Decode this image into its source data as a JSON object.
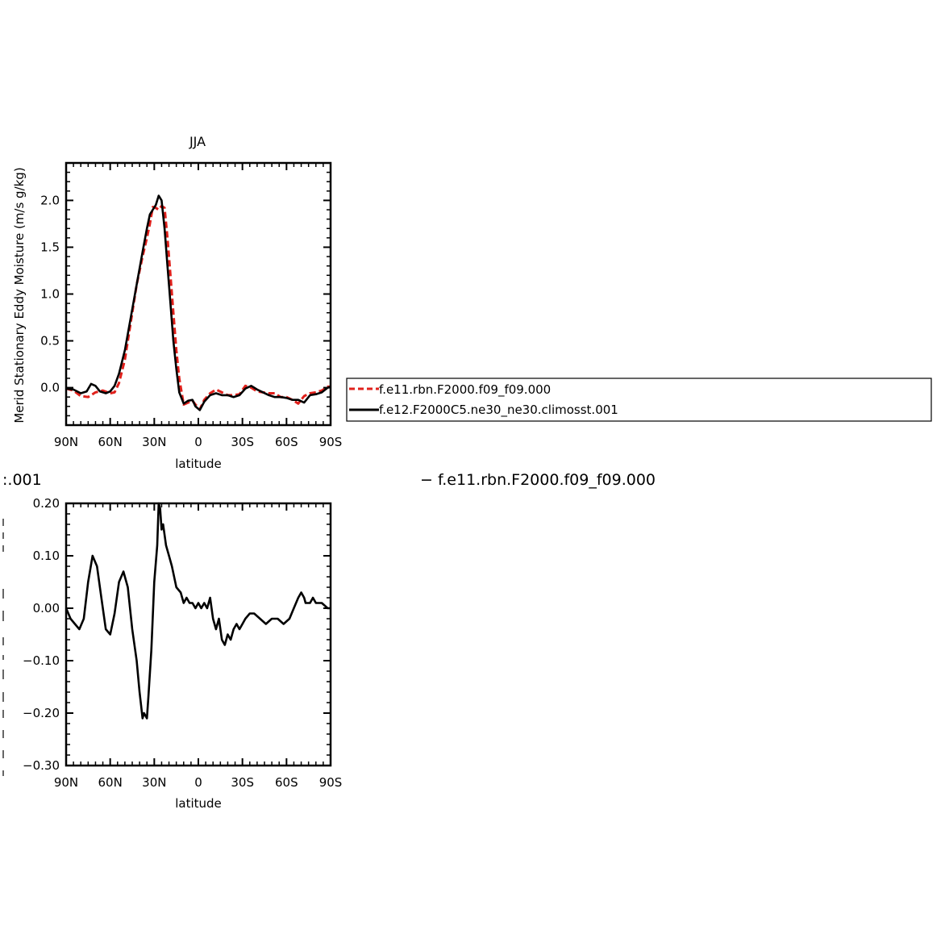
{
  "chart_data": [
    {
      "type": "line",
      "title": "JJA",
      "xlabel": "latitude",
      "ylabel": "Merid Stationary Eddy Moisture (m/s g/kg)",
      "xlim": [
        90,
        -90
      ],
      "ylim": [
        -0.4,
        2.4
      ],
      "xticks": [
        {
          "value": 90,
          "label": "90N"
        },
        {
          "value": 60,
          "label": "60N"
        },
        {
          "value": 30,
          "label": "30N"
        },
        {
          "value": 0,
          "label": "0"
        },
        {
          "value": -30,
          "label": "30S"
        },
        {
          "value": -60,
          "label": "60S"
        },
        {
          "value": -90,
          "label": "90S"
        }
      ],
      "yticks": [
        {
          "value": 0.0,
          "label": "0.0"
        },
        {
          "value": 0.5,
          "label": "0.5"
        },
        {
          "value": 1.0,
          "label": "1.0"
        },
        {
          "value": 1.5,
          "label": "1.5"
        },
        {
          "value": 2.0,
          "label": "2.0"
        }
      ],
      "legend": "right",
      "series": [
        {
          "name": "f.e11.rbn.F2000.f09_f09.000",
          "color": "#e0201b",
          "dash": true,
          "x": [
            90,
            85,
            80,
            75,
            70,
            65,
            60,
            57,
            54,
            50,
            46,
            42,
            38,
            35,
            33,
            31,
            29,
            27,
            25,
            23,
            21,
            19,
            17,
            15,
            13,
            10,
            7,
            4,
            2,
            -1,
            -4,
            -8,
            -12,
            -16,
            -20,
            -24,
            -28,
            -32,
            -36,
            -40,
            -44,
            -48,
            -52,
            -56,
            -60,
            -64,
            -68,
            -72,
            -76,
            -80,
            -84,
            -88,
            -90
          ],
          "y": [
            -0.01,
            -0.03,
            -0.09,
            -0.1,
            -0.05,
            -0.03,
            -0.06,
            -0.05,
            0.05,
            0.3,
            0.7,
            1.1,
            1.4,
            1.6,
            1.75,
            1.93,
            1.92,
            1.9,
            1.94,
            1.92,
            1.6,
            1.2,
            0.8,
            0.4,
            0.1,
            -0.18,
            -0.16,
            -0.14,
            -0.18,
            -0.23,
            -0.13,
            -0.06,
            -0.02,
            -0.05,
            -0.08,
            -0.08,
            -0.07,
            0.02,
            0.0,
            -0.04,
            -0.05,
            -0.06,
            -0.06,
            -0.1,
            -0.1,
            -0.13,
            -0.17,
            -0.09,
            -0.06,
            -0.05,
            -0.03,
            0.01,
            0.01
          ]
        },
        {
          "name": "f.e12.F2000C5.ne30_ne30.climosst.001",
          "color": "#000000",
          "dash": false,
          "x": [
            90,
            85,
            80,
            76,
            73,
            70,
            67,
            63,
            60,
            57,
            54,
            50,
            46,
            42,
            38,
            35,
            33,
            31,
            29,
            27,
            25,
            23,
            21,
            19,
            17,
            15,
            13,
            10,
            7,
            4,
            2,
            -1,
            -4,
            -8,
            -12,
            -16,
            -20,
            -24,
            -28,
            -32,
            -36,
            -40,
            -44,
            -48,
            -52,
            -56,
            -60,
            -64,
            -68,
            -72,
            -76,
            -80,
            -84,
            -88,
            -90
          ],
          "y": [
            -0.01,
            -0.02,
            -0.06,
            -0.04,
            0.04,
            0.02,
            -0.04,
            -0.06,
            -0.04,
            0.02,
            0.15,
            0.4,
            0.75,
            1.1,
            1.45,
            1.7,
            1.85,
            1.9,
            1.95,
            2.05,
            2.0,
            1.7,
            1.3,
            0.9,
            0.5,
            0.2,
            -0.05,
            -0.17,
            -0.14,
            -0.13,
            -0.2,
            -0.24,
            -0.15,
            -0.08,
            -0.06,
            -0.08,
            -0.08,
            -0.1,
            -0.08,
            -0.01,
            0.02,
            -0.02,
            -0.05,
            -0.08,
            -0.1,
            -0.1,
            -0.11,
            -0.13,
            -0.13,
            -0.16,
            -0.08,
            -0.07,
            -0.05,
            0.0,
            0.01
          ]
        }
      ]
    },
    {
      "type": "line",
      "title": "",
      "title_fragment": ":.001",
      "legend_text": "− f.e11.rbn.F2000.f09_f09.000",
      "xlabel": "latitude",
      "ylabel": "",
      "xlim": [
        90,
        -90
      ],
      "ylim": [
        -0.3,
        0.2
      ],
      "xticks": [
        {
          "value": 90,
          "label": "90N"
        },
        {
          "value": 60,
          "label": "60N"
        },
        {
          "value": 30,
          "label": "30N"
        },
        {
          "value": 0,
          "label": "0"
        },
        {
          "value": -30,
          "label": "30S"
        },
        {
          "value": -60,
          "label": "60S"
        },
        {
          "value": -90,
          "label": "90S"
        }
      ],
      "yticks": [
        {
          "value": 0.2,
          "label": "0.20"
        },
        {
          "value": 0.1,
          "label": "0.10"
        },
        {
          "value": 0.0,
          "label": "0.00"
        },
        {
          "value": -0.1,
          "label": "−0.10"
        },
        {
          "value": -0.2,
          "label": "−0.20"
        },
        {
          "value": -0.3,
          "label": "−0.30"
        }
      ],
      "series": [
        {
          "color": "#000000",
          "x": [
            90,
            87,
            84,
            81,
            78,
            75,
            72,
            69,
            66,
            63,
            60,
            57,
            54,
            51,
            48,
            45,
            42,
            40,
            38,
            37,
            35,
            34,
            32,
            30,
            28,
            27,
            26,
            25,
            24,
            22,
            20,
            18,
            15,
            12,
            10,
            8,
            6,
            4,
            2,
            0,
            -2,
            -4,
            -6,
            -8,
            -10,
            -12,
            -14,
            -16,
            -18,
            -20,
            -22,
            -24,
            -26,
            -28,
            -30,
            -32,
            -35,
            -38,
            -42,
            -46,
            -50,
            -54,
            -58,
            -62,
            -65,
            -68,
            -70,
            -72,
            -73,
            -74,
            -76,
            -78,
            -80,
            -84,
            -88,
            -90
          ],
          "y": [
            0.0,
            -0.02,
            -0.03,
            -0.04,
            -0.02,
            0.05,
            0.1,
            0.08,
            0.02,
            -0.04,
            -0.05,
            -0.01,
            0.05,
            0.07,
            0.04,
            -0.04,
            -0.1,
            -0.16,
            -0.21,
            -0.2,
            -0.21,
            -0.17,
            -0.08,
            0.05,
            0.12,
            0.2,
            0.19,
            0.15,
            0.16,
            0.12,
            0.1,
            0.08,
            0.04,
            0.03,
            0.01,
            0.02,
            0.01,
            0.01,
            0.0,
            0.01,
            0.0,
            0.01,
            0.0,
            0.02,
            -0.02,
            -0.04,
            -0.02,
            -0.06,
            -0.07,
            -0.05,
            -0.06,
            -0.04,
            -0.03,
            -0.04,
            -0.03,
            -0.02,
            -0.01,
            -0.01,
            -0.02,
            -0.03,
            -0.02,
            -0.02,
            -0.03,
            -0.02,
            0.0,
            0.02,
            0.03,
            0.02,
            0.01,
            0.01,
            0.01,
            0.02,
            0.01,
            0.01,
            0.0,
            0.0
          ]
        }
      ]
    }
  ]
}
